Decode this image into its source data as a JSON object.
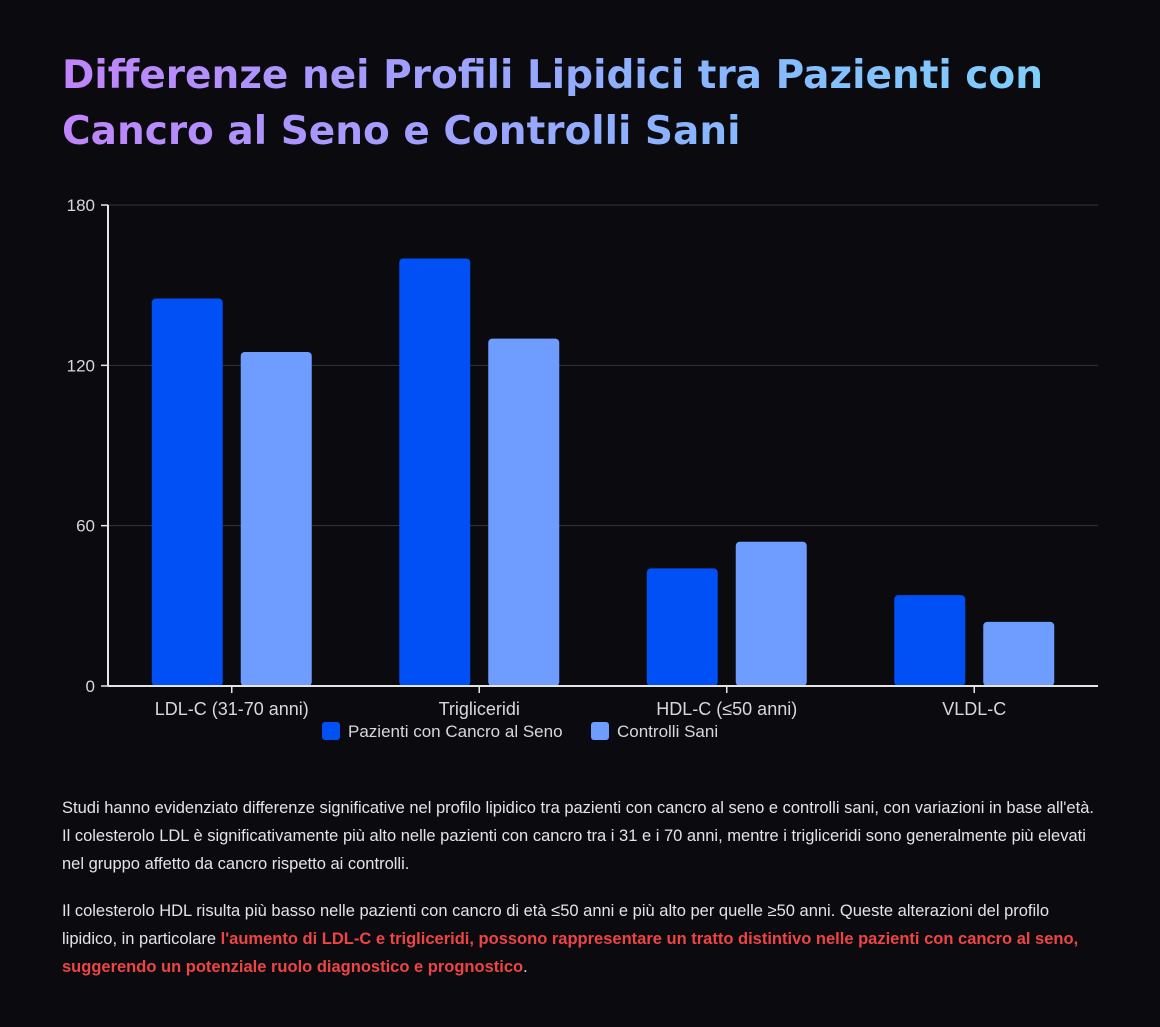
{
  "title": "Differenze nei Profili Lipidici tra Pazienti con Cancro al Seno e Controlli Sani",
  "colors": {
    "background": "#0b0b0f",
    "series_1": "#0050f5",
    "series_2": "#6e9dff",
    "highlight": "#ef4444",
    "axis": "#e5e5e5",
    "grid": "#33333a"
  },
  "chart_data": {
    "type": "bar",
    "categories": [
      "LDL-C (31-70 anni)",
      "Trigliceridi",
      "HDL-C (≤50 anni)",
      "VLDL-C"
    ],
    "series": [
      {
        "name": "Pazienti con Cancro al Seno",
        "values": [
          145,
          160,
          44,
          34
        ]
      },
      {
        "name": "Controlli Sani",
        "values": [
          125,
          130,
          54,
          24
        ]
      }
    ],
    "ylim": [
      0,
      180
    ],
    "yticks": [
      0,
      60,
      120,
      180
    ],
    "xlabel": "",
    "ylabel": "",
    "grid": true,
    "legend_position": "bottom-center"
  },
  "paragraph_1": "Studi hanno evidenziato differenze significative nel profilo lipidico tra pazienti con cancro al seno e controlli sani, con variazioni in base all'età. Il colesterolo LDL è significativamente più alto nelle pazienti con cancro tra i 31 e i 70 anni, mentre i trigliceridi sono generalmente più elevati nel gruppo affetto da cancro rispetto ai controlli.",
  "paragraph_2": {
    "before": "Il colesterolo HDL risulta più basso nelle pazienti con cancro di età ≤50 anni e più alto per quelle ≥50 anni. Queste alterazioni del profilo lipidico, in particolare ",
    "highlight": "l'aumento di LDL-C e trigliceridi, possono rappresentare un tratto distintivo nelle pazienti con cancro al seno, suggerendo un potenziale ruolo diagnostico e prognostico",
    "after": "."
  }
}
